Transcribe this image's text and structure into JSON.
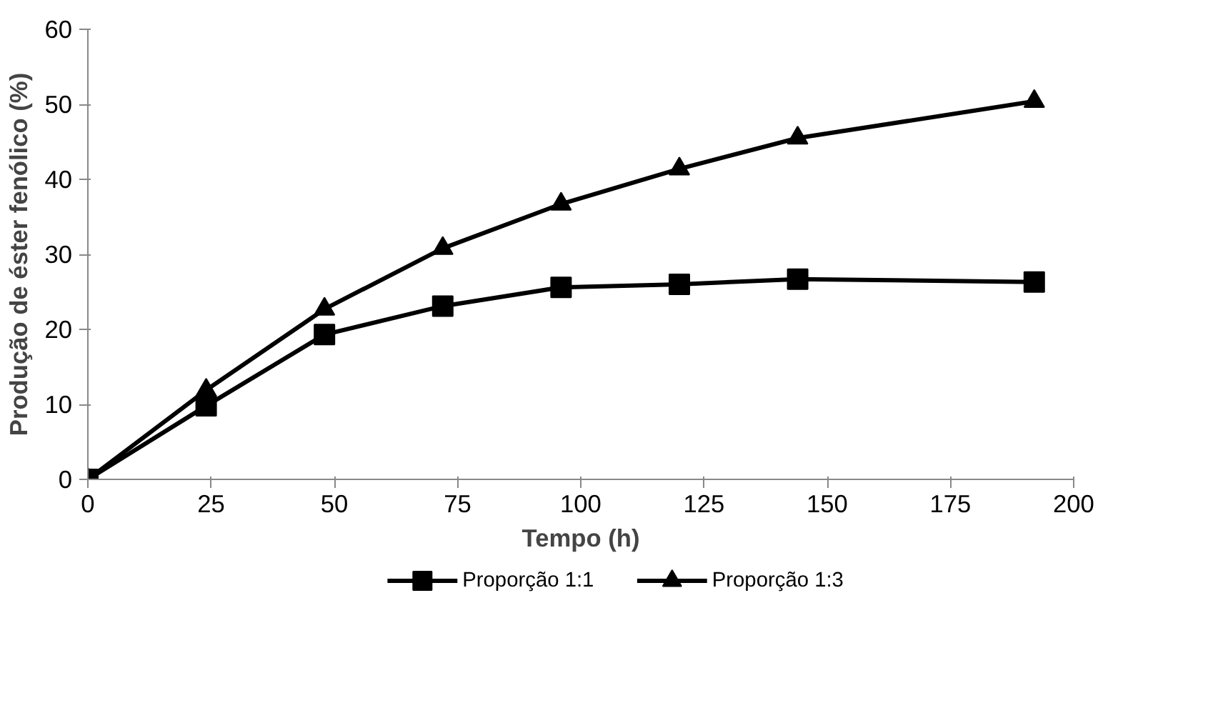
{
  "chart_data": {
    "type": "line",
    "xlabel": "Tempo (h)",
    "ylabel": "Produção de éster fenólico (%)",
    "x": [
      0,
      24,
      48,
      72,
      96,
      120,
      144,
      192
    ],
    "series": [
      {
        "name": "Proporção 1:1",
        "color": "#000000",
        "marker": "square",
        "values": [
          0,
          9.8,
          19.3,
          23.1,
          25.6,
          26,
          26.7,
          26.3
        ]
      },
      {
        "name": "Proporção 1:3",
        "color": "#000000",
        "marker": "triangle",
        "values": [
          0,
          11.9,
          22.7,
          30.8,
          36.7,
          41.4,
          45.5,
          50.4
        ]
      }
    ],
    "xlim": [
      0,
      200
    ],
    "xticks": [
      0,
      25,
      50,
      75,
      100,
      125,
      150,
      175,
      200
    ],
    "ylim": [
      0,
      60
    ],
    "yticks": [
      0,
      10,
      20,
      30,
      40,
      50,
      60
    ],
    "grid": false,
    "legend": "bottom",
    "line_style": "solid"
  }
}
